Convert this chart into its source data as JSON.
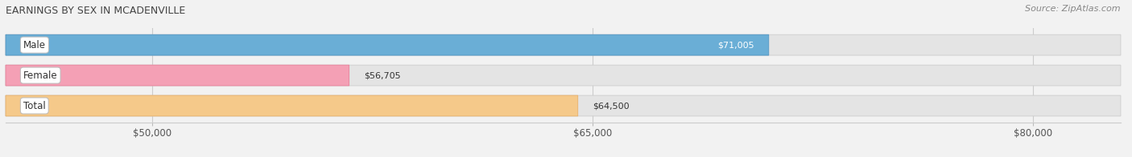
{
  "title": "EARNINGS BY SEX IN MCADENVILLE",
  "source": "Source: ZipAtlas.com",
  "categories": [
    "Male",
    "Female",
    "Total"
  ],
  "values": [
    71005,
    56705,
    64500
  ],
  "bar_colors": [
    "#6aaed6",
    "#f4a0b5",
    "#f5c98a"
  ],
  "bar_edge_colors": [
    "#4f94c2",
    "#e8809a",
    "#e8b06a"
  ],
  "value_labels": [
    "$71,005",
    "$56,705",
    "$64,500"
  ],
  "xmin": 45000,
  "xmax": 83000,
  "xticks": [
    50000,
    65000,
    80000
  ],
  "xtick_labels": [
    "$50,000",
    "$65,000",
    "$80,000"
  ],
  "figwidth": 14.06,
  "figheight": 1.96,
  "dpi": 100,
  "bar_height": 0.68,
  "title_fontsize": 9,
  "label_fontsize": 8.5,
  "value_fontsize": 8,
  "source_fontsize": 8,
  "background_color": "#f2f2f2",
  "bar_background_color": "#e4e4e4"
}
